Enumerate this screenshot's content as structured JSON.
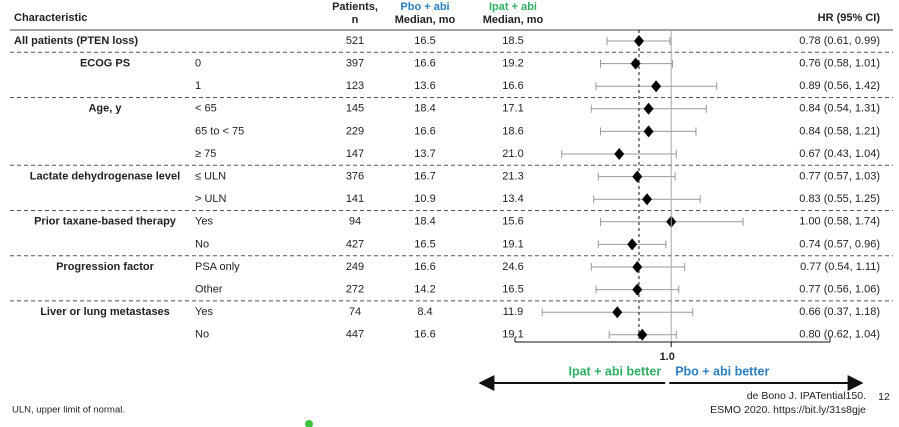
{
  "chart_data": {
    "type": "forest",
    "headers": {
      "characteristic": "Characteristic",
      "patients": [
        "Patients,",
        "n"
      ],
      "pbo": [
        "Pbo + abi",
        "Median, mo"
      ],
      "ipat": [
        "Ipat + abi",
        "Median, mo"
      ],
      "hr": "HR (95% CI)"
    },
    "pbo_color": "#2a7fc1",
    "ipat_color": "#2fae62",
    "groups": [
      {
        "name": "All patients (PTEN loss)",
        "rows": [
          {
            "n": 521,
            "pbo": "16.5",
            "ipat": "18.5",
            "hr": 0.78,
            "ci": [
              0.61,
              0.99
            ],
            "hr_label": "0.78 (0.61, 0.99)"
          }
        ]
      },
      {
        "name": "ECOG PS",
        "rows": [
          {
            "subgroup": "0",
            "n": 397,
            "pbo": "16.6",
            "ipat": "19.2",
            "hr": 0.76,
            "ci": [
              0.58,
              1.01
            ],
            "hr_label": "0.76 (0.58, 1.01)"
          },
          {
            "subgroup": "1",
            "n": 123,
            "pbo": "13.6",
            "ipat": "16.6",
            "hr": 0.89,
            "ci": [
              0.56,
              1.42
            ],
            "hr_label": "0.89 (0.56, 1.42)"
          }
        ]
      },
      {
        "name": "Age, y",
        "rows": [
          {
            "subgroup": "< 65",
            "n": 145,
            "pbo": "18.4",
            "ipat": "17.1",
            "hr": 0.84,
            "ci": [
              0.54,
              1.31
            ],
            "hr_label": "0.84 (0.54, 1.31)"
          },
          {
            "subgroup": "65 to < 75",
            "n": 229,
            "pbo": "16.6",
            "ipat": "18.6",
            "hr": 0.84,
            "ci": [
              0.58,
              1.21
            ],
            "hr_label": "0.84 (0.58, 1.21)"
          },
          {
            "subgroup": "≥ 75",
            "n": 147,
            "pbo": "13.7",
            "ipat": "21.0",
            "hr": 0.67,
            "ci": [
              0.43,
              1.04
            ],
            "hr_label": "0.67 (0.43, 1.04)"
          }
        ]
      },
      {
        "name": "Lactate dehydrogenase level",
        "rows": [
          {
            "subgroup": "≤ ULN",
            "n": 376,
            "pbo": "16.7",
            "ipat": "21.3",
            "hr": 0.77,
            "ci": [
              0.57,
              1.03
            ],
            "hr_label": "0.77 (0.57, 1.03)"
          },
          {
            "subgroup": "> ULN",
            "n": 141,
            "pbo": "10.9",
            "ipat": "13.4",
            "hr": 0.83,
            "ci": [
              0.55,
              1.25
            ],
            "hr_label": "0.83 (0.55, 1.25)"
          }
        ]
      },
      {
        "name": "Prior taxane-based therapy",
        "rows": [
          {
            "subgroup": "Yes",
            "n": 94,
            "pbo": "18.4",
            "ipat": "15.6",
            "hr": 1.0,
            "ci": [
              0.58,
              1.74
            ],
            "hr_label": "1.00 (0.58, 1.74)"
          },
          {
            "subgroup": "No",
            "n": 427,
            "pbo": "16.5",
            "ipat": "19.1",
            "hr": 0.74,
            "ci": [
              0.57,
              0.96
            ],
            "hr_label": "0.74 (0.57, 0.96)"
          }
        ]
      },
      {
        "name": "Progression factor",
        "rows": [
          {
            "subgroup": "PSA only",
            "n": 249,
            "pbo": "16.6",
            "ipat": "24.6",
            "hr": 0.77,
            "ci": [
              0.54,
              1.11
            ],
            "hr_label": "0.77 (0.54, 1.11)"
          },
          {
            "subgroup": "Other",
            "n": 272,
            "pbo": "14.2",
            "ipat": "16.5",
            "hr": 0.77,
            "ci": [
              0.56,
              1.06
            ],
            "hr_label": "0.77 (0.56, 1.06)"
          }
        ]
      },
      {
        "name": "Liver or lung metastases",
        "rows": [
          {
            "subgroup": "Yes",
            "n": 74,
            "pbo": "8.4",
            "ipat": "11.9",
            "hr": 0.66,
            "ci": [
              0.37,
              1.18
            ],
            "hr_label": "0.66 (0.37, 1.18)"
          },
          {
            "subgroup": "No",
            "n": 447,
            "pbo": "16.6",
            "ipat": "19.1",
            "hr": 0.8,
            "ci": [
              0.62,
              1.04
            ],
            "hr_label": "0.80 (0.62, 1.04)"
          }
        ]
      }
    ],
    "xscale": "log",
    "xlim": [
      0.3,
      3.4
    ],
    "xticks": [
      {
        "value": 1,
        "label": "1.0"
      }
    ],
    "arrow_left": "Ipat + abi better",
    "arrow_right": "Pbo + abi better",
    "footnote": "ULN, upper limit of normal.",
    "citation": [
      "de Bono J. IPATential150.",
      "ESMO 2020. https://bit.ly/31s8gje"
    ],
    "page_number": "12"
  }
}
